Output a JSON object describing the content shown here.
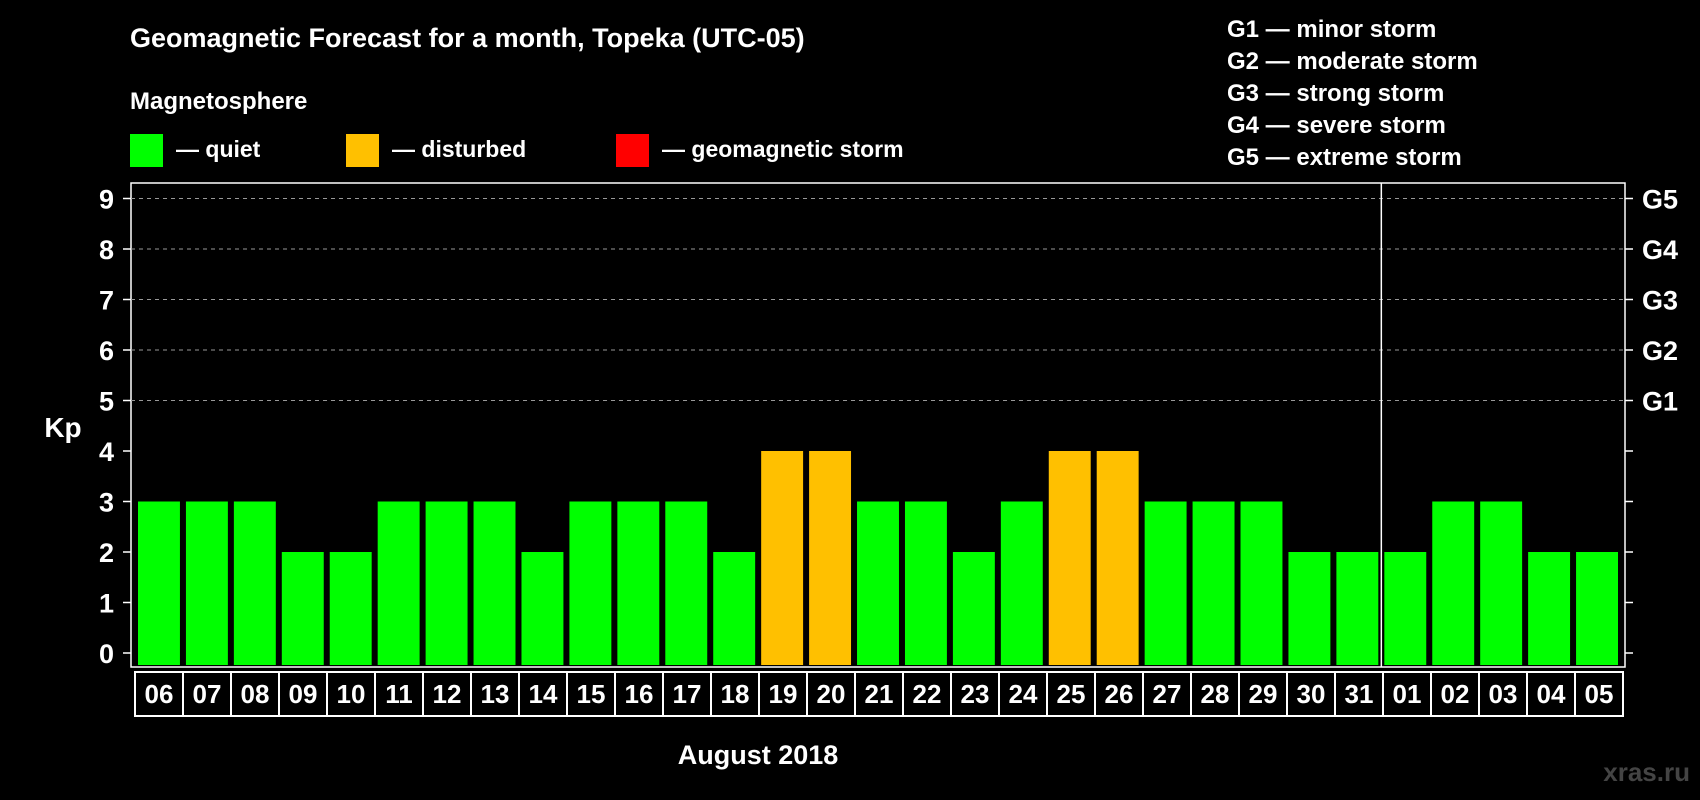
{
  "colors": {
    "quiet": "#00ff00",
    "disturbed": "#ffc000",
    "storm": "#ff0000",
    "background": "#000000",
    "axis": "#ffffff",
    "grid": "#999999"
  },
  "legend": {
    "section_title": "Magnetosphere",
    "quiet": "— quiet",
    "disturbed": "— disturbed",
    "storm": "— geomagnetic storm"
  },
  "storm_scale": [
    "G1 — minor storm",
    "G2 — moderate storm",
    "G3 — strong storm",
    "G4 — severe storm",
    "G5 — extreme storm"
  ],
  "watermark": "xras.ru",
  "chart_data": {
    "type": "bar",
    "title": "Geomagnetic Forecast for a month, Topeka (UTC-05)",
    "xlabel": "August 2018",
    "ylabel": "Kp",
    "ylim": [
      0,
      9
    ],
    "yticks": [
      "0",
      "1",
      "2",
      "3",
      "4",
      "5",
      "6",
      "7",
      "8",
      "9"
    ],
    "right_axis_labels": [
      {
        "kp": 5,
        "label": "G1"
      },
      {
        "kp": 6,
        "label": "G2"
      },
      {
        "kp": 7,
        "label": "G3"
      },
      {
        "kp": 8,
        "label": "G4"
      },
      {
        "kp": 9,
        "label": "G5"
      }
    ],
    "grid": "dashed horizontal lines at Kp 5–9",
    "month_boundary_after": "31",
    "categories": [
      "06",
      "07",
      "08",
      "09",
      "10",
      "11",
      "12",
      "13",
      "14",
      "15",
      "16",
      "17",
      "18",
      "19",
      "20",
      "21",
      "22",
      "23",
      "24",
      "25",
      "26",
      "27",
      "28",
      "29",
      "30",
      "31",
      "01",
      "02",
      "03",
      "04",
      "05"
    ],
    "values": [
      3,
      3,
      3,
      2,
      2,
      3,
      3,
      3,
      2,
      3,
      3,
      3,
      2,
      4,
      4,
      3,
      3,
      2,
      3,
      4,
      4,
      3,
      3,
      3,
      2,
      2,
      2,
      3,
      3,
      2,
      2
    ],
    "status": [
      "quiet",
      "quiet",
      "quiet",
      "quiet",
      "quiet",
      "quiet",
      "quiet",
      "quiet",
      "quiet",
      "quiet",
      "quiet",
      "quiet",
      "quiet",
      "disturbed",
      "disturbed",
      "quiet",
      "quiet",
      "quiet",
      "quiet",
      "disturbed",
      "disturbed",
      "quiet",
      "quiet",
      "quiet",
      "quiet",
      "quiet",
      "quiet",
      "quiet",
      "quiet",
      "quiet",
      "quiet"
    ]
  }
}
